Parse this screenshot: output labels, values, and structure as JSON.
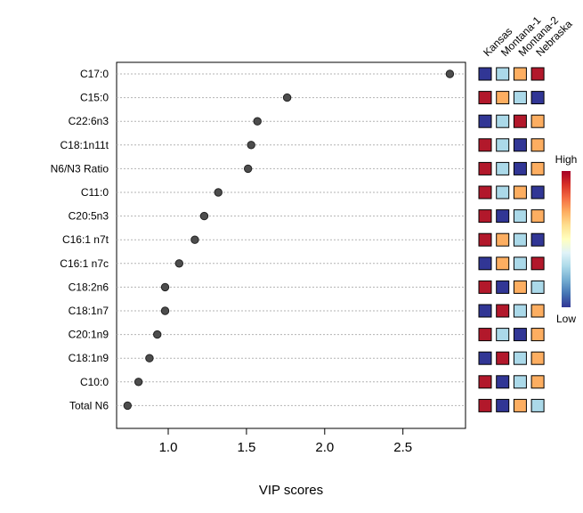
{
  "chart_data": {
    "type": "scatter",
    "xlabel": "VIP scores",
    "xlim": [
      0.67,
      2.9
    ],
    "xticks": [
      1.0,
      1.5,
      2.0,
      2.5
    ],
    "xtick_labels": [
      "1.0",
      "1.5",
      "2.0",
      "2.5"
    ],
    "grid": "horizontal dotted per feature",
    "categories": [
      "C17:0",
      "C15:0",
      "C22:6n3",
      "C18:1n11t",
      "N6/N3 Ratio",
      "C11:0",
      "C20:5n3",
      "C16:1 n7t",
      "C16:1 n7c",
      "C18:2n6",
      "C18:1n7",
      "C20:1n9",
      "C18:1n9",
      "C10:0",
      "Total N6"
    ],
    "values": [
      2.8,
      1.76,
      1.57,
      1.53,
      1.51,
      1.32,
      1.23,
      1.17,
      1.07,
      0.98,
      0.98,
      0.93,
      0.88,
      0.81,
      0.74
    ],
    "marker_color": "#4d4d4d",
    "heatmap": {
      "columns": [
        "Kansas",
        "Montana-1",
        "Montana-2",
        "Nebraska"
      ],
      "rows": [
        [
          "dark-blue",
          "light-blue",
          "orange",
          "dark-red"
        ],
        [
          "dark-red",
          "orange",
          "light-blue",
          "dark-blue"
        ],
        [
          "dark-blue",
          "light-blue",
          "dark-red",
          "orange"
        ],
        [
          "dark-red",
          "light-blue",
          "dark-blue",
          "orange"
        ],
        [
          "dark-red",
          "light-blue",
          "dark-blue",
          "orange"
        ],
        [
          "dark-red",
          "light-blue",
          "orange",
          "dark-blue"
        ],
        [
          "dark-red",
          "dark-blue",
          "light-blue",
          "orange"
        ],
        [
          "dark-red",
          "orange",
          "light-blue",
          "dark-blue"
        ],
        [
          "dark-blue",
          "orange",
          "light-blue",
          "dark-red"
        ],
        [
          "dark-red",
          "dark-blue",
          "orange",
          "light-blue"
        ],
        [
          "dark-blue",
          "dark-red",
          "light-blue",
          "orange"
        ],
        [
          "dark-red",
          "light-blue",
          "dark-blue",
          "orange"
        ],
        [
          "dark-blue",
          "dark-red",
          "light-blue",
          "orange"
        ],
        [
          "dark-red",
          "dark-blue",
          "light-blue",
          "orange"
        ],
        [
          "dark-red",
          "dark-blue",
          "orange",
          "light-blue"
        ]
      ],
      "colors": {
        "dark-red": "#b2182b",
        "orange": "#fdae61",
        "light-blue": "#abd9e9",
        "dark-blue": "#313695"
      }
    },
    "colorbar": {
      "high_label": "High",
      "low_label": "Low",
      "stops": [
        "#313695",
        "#4575b4",
        "#74add1",
        "#abd9e9",
        "#e0f3f8",
        "#ffffbf",
        "#fee090",
        "#fdae61",
        "#f46d43",
        "#d73027",
        "#a50026"
      ]
    }
  }
}
